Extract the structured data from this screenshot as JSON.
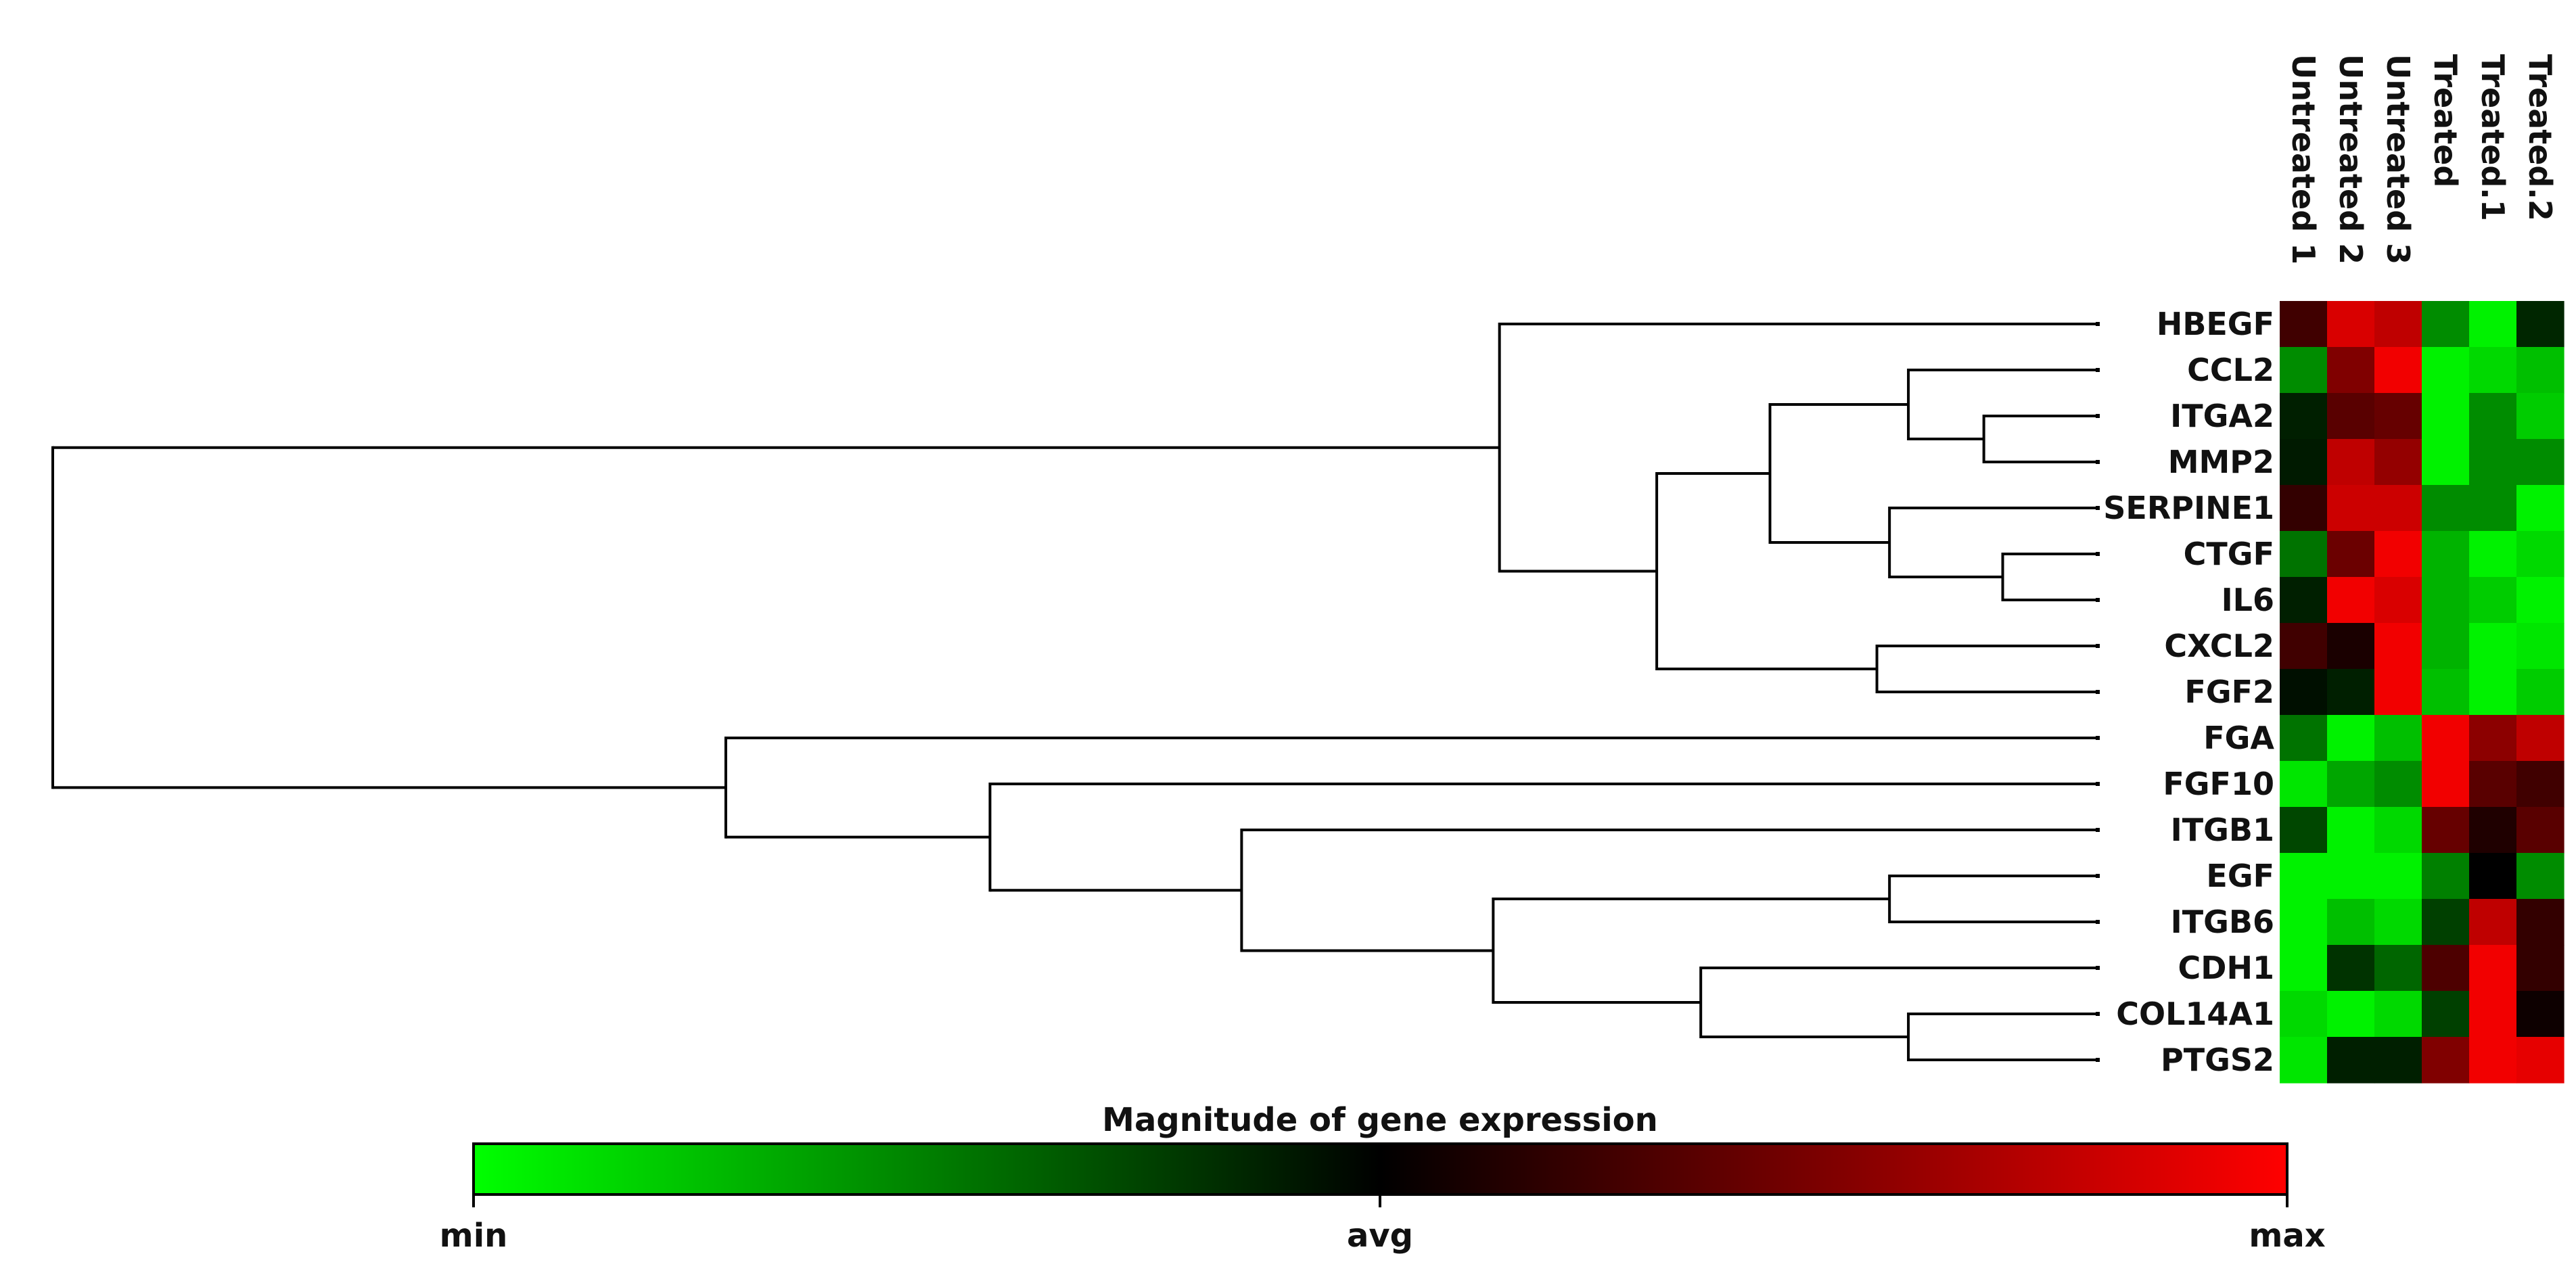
{
  "chart_data": {
    "type": "heatmap",
    "columns": [
      "Untreated 1",
      "Untreated 2",
      "Untreated 3",
      "Treated",
      "Treated.1",
      "Treated.2"
    ],
    "rows": [
      "HBEGF",
      "CCL2",
      "ITGA2",
      "MMP2",
      "SERPINE1",
      "CTGF",
      "IL6",
      "CXCL2",
      "FGF2",
      "FGA",
      "FGF10",
      "ITGB1",
      "EGF",
      "ITGB6",
      "CDH1",
      "COL14A1",
      "PTGS2"
    ],
    "values": [
      [
        0.25,
        0.85,
        0.75,
        -0.55,
        -0.95,
        -0.15
      ],
      [
        -0.55,
        0.5,
        0.95,
        -0.95,
        -0.85,
        -0.75
      ],
      [
        -0.12,
        0.35,
        0.4,
        -0.95,
        -0.55,
        -0.8
      ],
      [
        -0.1,
        0.75,
        0.58,
        -0.95,
        -0.55,
        -0.55
      ],
      [
        0.2,
        0.8,
        0.8,
        -0.55,
        -0.55,
        -0.95
      ],
      [
        -0.45,
        0.42,
        0.95,
        -0.7,
        -0.95,
        -0.85
      ],
      [
        -0.12,
        0.95,
        0.85,
        -0.7,
        -0.8,
        -0.95
      ],
      [
        0.25,
        0.1,
        0.95,
        -0.7,
        -0.95,
        -0.9
      ],
      [
        -0.06,
        -0.12,
        0.95,
        -0.75,
        -0.95,
        -0.8
      ],
      [
        -0.45,
        -0.95,
        -0.75,
        0.95,
        0.55,
        0.75
      ],
      [
        -0.9,
        -0.65,
        -0.55,
        0.95,
        0.35,
        0.25
      ],
      [
        -0.28,
        -0.95,
        -0.85,
        0.4,
        0.12,
        0.35
      ],
      [
        -0.95,
        -0.95,
        -0.95,
        -0.5,
        0.0,
        -0.55
      ],
      [
        -0.95,
        -0.75,
        -0.85,
        -0.25,
        0.75,
        0.2
      ],
      [
        -0.95,
        -0.2,
        -0.4,
        0.3,
        0.95,
        0.2
      ],
      [
        -0.85,
        -0.95,
        -0.85,
        -0.25,
        0.95,
        0.05
      ],
      [
        -0.9,
        -0.12,
        -0.12,
        0.5,
        0.95,
        0.9
      ]
    ],
    "dendrogram": {
      "merges": [
        [
          2,
          3,
          0.18
        ],
        [
          5,
          6,
          0.15
        ],
        [
          7,
          8,
          0.35
        ],
        [
          1,
          17,
          0.3
        ],
        [
          4,
          18,
          0.33
        ],
        [
          20,
          21,
          0.52
        ],
        [
          22,
          19,
          0.7
        ],
        [
          0,
          23,
          0.95
        ],
        [
          12,
          13,
          0.33
        ],
        [
          15,
          16,
          0.3
        ],
        [
          14,
          26,
          0.63
        ],
        [
          25,
          27,
          0.96
        ],
        [
          11,
          28,
          1.36
        ],
        [
          10,
          29,
          1.76
        ],
        [
          9,
          30,
          2.18
        ],
        [
          24,
          31,
          3.25
        ]
      ]
    },
    "colorbar": {
      "title": "Magnitude of gene expression",
      "tick_labels": [
        "min",
        "avg",
        "max"
      ],
      "range": [
        -1,
        1
      ],
      "colors": [
        "#00ff00",
        "#000000",
        "#ff0000"
      ]
    }
  }
}
